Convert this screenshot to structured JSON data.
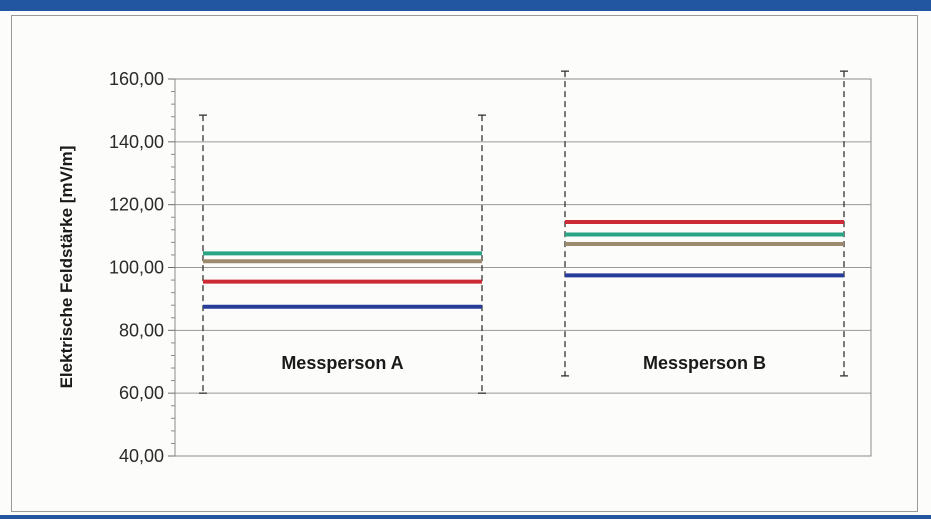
{
  "chart_data": {
    "type": "line",
    "ylabel": "Elektrische Feldstärke [mV/m]",
    "ylim": [
      40,
      160
    ],
    "yticks": [
      40,
      60,
      80,
      100,
      120,
      140,
      160
    ],
    "ytick_labels": [
      "40,00",
      "60,00",
      "80,00",
      "100,00",
      "120,00",
      "140,00",
      "160,00"
    ],
    "grid": true,
    "groups": [
      {
        "label": "Messperson A",
        "range_min": 60,
        "range_max": 148.5,
        "lines": [
          {
            "color": "#29a585",
            "value": 104.5
          },
          {
            "color": "#9c8a6e",
            "value": 102
          },
          {
            "color": "#cc2a35",
            "value": 95.5
          },
          {
            "color": "#283c9a",
            "value": 87.5
          }
        ]
      },
      {
        "label": "Messperson B",
        "range_min": 65.5,
        "range_max": 162.5,
        "lines": [
          {
            "color": "#cc2a35",
            "value": 114.5
          },
          {
            "color": "#29a585",
            "value": 110.5
          },
          {
            "color": "#9c8a6e",
            "value": 107.5
          },
          {
            "color": "#283c9a",
            "value": 97.5
          }
        ]
      }
    ]
  }
}
